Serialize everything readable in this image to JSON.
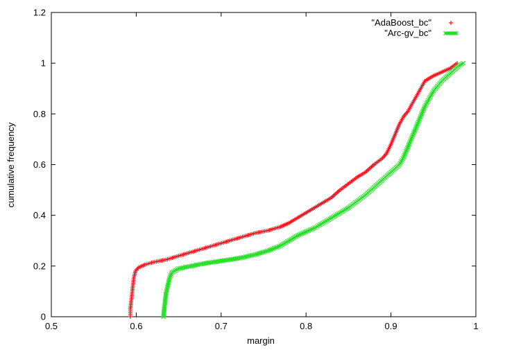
{
  "chart_data": {
    "type": "scatter",
    "xlabel": "margin",
    "ylabel": "cumulative frequency",
    "xlim": [
      0.5,
      1.0
    ],
    "ylim": [
      0,
      1.2
    ],
    "xticks": [
      "0.5",
      "0.6",
      "0.7",
      "0.8",
      "0.9",
      "1"
    ],
    "yticks": [
      "0",
      "0.2",
      "0.4",
      "0.6",
      "0.8",
      "1",
      "1.2"
    ],
    "grid": false,
    "legend_position": "top-right",
    "series": [
      {
        "name": "\"AdaBoost_bc\"",
        "color": "#e8141c",
        "marker": "plus-icon",
        "points": [
          [
            0.593,
            0.0
          ],
          [
            0.593,
            0.03
          ],
          [
            0.594,
            0.06
          ],
          [
            0.595,
            0.09
          ],
          [
            0.596,
            0.12
          ],
          [
            0.597,
            0.15
          ],
          [
            0.599,
            0.18
          ],
          [
            0.603,
            0.195
          ],
          [
            0.61,
            0.205
          ],
          [
            0.62,
            0.215
          ],
          [
            0.635,
            0.225
          ],
          [
            0.65,
            0.24
          ],
          [
            0.665,
            0.255
          ],
          [
            0.68,
            0.27
          ],
          [
            0.695,
            0.285
          ],
          [
            0.71,
            0.3
          ],
          [
            0.725,
            0.315
          ],
          [
            0.74,
            0.33
          ],
          [
            0.755,
            0.34
          ],
          [
            0.77,
            0.355
          ],
          [
            0.78,
            0.37
          ],
          [
            0.79,
            0.39
          ],
          [
            0.8,
            0.41
          ],
          [
            0.81,
            0.43
          ],
          [
            0.82,
            0.45
          ],
          [
            0.83,
            0.47
          ],
          [
            0.84,
            0.5
          ],
          [
            0.85,
            0.525
          ],
          [
            0.86,
            0.55
          ],
          [
            0.87,
            0.57
          ],
          [
            0.88,
            0.6
          ],
          [
            0.89,
            0.625
          ],
          [
            0.895,
            0.645
          ],
          [
            0.9,
            0.68
          ],
          [
            0.905,
            0.72
          ],
          [
            0.91,
            0.76
          ],
          [
            0.915,
            0.79
          ],
          [
            0.92,
            0.81
          ],
          [
            0.925,
            0.84
          ],
          [
            0.93,
            0.87
          ],
          [
            0.935,
            0.9
          ],
          [
            0.94,
            0.93
          ],
          [
            0.95,
            0.95
          ],
          [
            0.96,
            0.965
          ],
          [
            0.97,
            0.98
          ],
          [
            0.978,
            1.0
          ]
        ]
      },
      {
        "name": "\"Arc-gv_bc\"",
        "color": "#22e022",
        "marker": "cross-icon",
        "points": [
          [
            0.632,
            0.0
          ],
          [
            0.633,
            0.03
          ],
          [
            0.634,
            0.06
          ],
          [
            0.635,
            0.09
          ],
          [
            0.637,
            0.12
          ],
          [
            0.639,
            0.15
          ],
          [
            0.642,
            0.175
          ],
          [
            0.65,
            0.19
          ],
          [
            0.665,
            0.2
          ],
          [
            0.68,
            0.21
          ],
          [
            0.7,
            0.22
          ],
          [
            0.72,
            0.23
          ],
          [
            0.74,
            0.245
          ],
          [
            0.755,
            0.26
          ],
          [
            0.77,
            0.28
          ],
          [
            0.78,
            0.3
          ],
          [
            0.79,
            0.32
          ],
          [
            0.8,
            0.335
          ],
          [
            0.81,
            0.35
          ],
          [
            0.82,
            0.37
          ],
          [
            0.83,
            0.39
          ],
          [
            0.84,
            0.41
          ],
          [
            0.85,
            0.43
          ],
          [
            0.86,
            0.455
          ],
          [
            0.87,
            0.48
          ],
          [
            0.88,
            0.51
          ],
          [
            0.89,
            0.54
          ],
          [
            0.9,
            0.57
          ],
          [
            0.91,
            0.6
          ],
          [
            0.915,
            0.63
          ],
          [
            0.92,
            0.67
          ],
          [
            0.925,
            0.71
          ],
          [
            0.93,
            0.75
          ],
          [
            0.935,
            0.79
          ],
          [
            0.94,
            0.83
          ],
          [
            0.945,
            0.86
          ],
          [
            0.95,
            0.89
          ],
          [
            0.96,
            0.93
          ],
          [
            0.97,
            0.96
          ],
          [
            0.98,
            0.99
          ],
          [
            0.985,
            1.0
          ]
        ]
      }
    ]
  }
}
